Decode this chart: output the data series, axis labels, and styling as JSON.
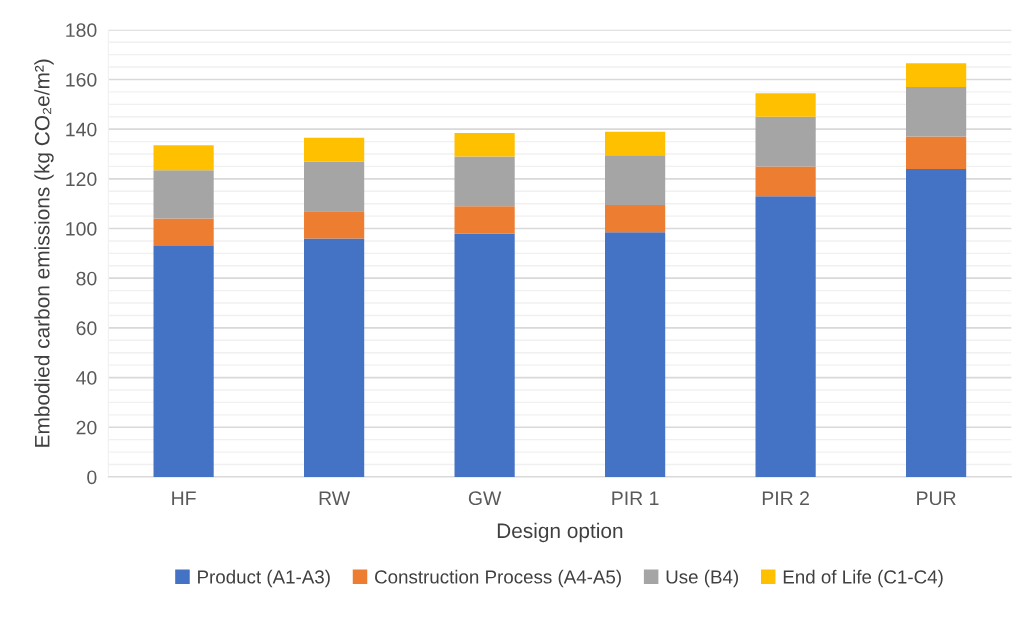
{
  "chart_data": {
    "type": "bar",
    "stacked": true,
    "xlabel": "Design option",
    "ylabel": "Embodied carbon emissions (kg CO₂e/m²)",
    "categories": [
      "HF",
      "RW",
      "GW",
      "PIR 1",
      "PIR 2",
      "PUR"
    ],
    "series": [
      {
        "name": "Product (A1-A3)",
        "color": "#4472c4",
        "values": [
          93,
          96,
          98,
          98.5,
          113,
          124
        ]
      },
      {
        "name": "Construction Process (A4-A5)",
        "color": "#ed7d31",
        "values": [
          11,
          11,
          11,
          11,
          12,
          13
        ]
      },
      {
        "name": "Use (B4)",
        "color": "#a5a5a5",
        "values": [
          19.5,
          20,
          20,
          20,
          20,
          20
        ]
      },
      {
        "name": "End of Life (C1-C4)",
        "color": "#ffc000",
        "values": [
          10,
          9.5,
          9.5,
          9.5,
          9.5,
          9.5
        ]
      }
    ],
    "ylim": [
      0,
      180
    ],
    "yticks": [
      0,
      {
        "value": 5,
        "label": null
      },
      {
        "value": 10,
        "label": null
      },
      {
        "value": 15,
        "label": null
      },
      20,
      {
        "value": 25,
        "label": null
      },
      {
        "value": 30,
        "label": null
      },
      {
        "value": 35,
        "label": null
      },
      40,
      {
        "value": 45,
        "label": null
      },
      {
        "value": 50,
        "label": null
      },
      {
        "value": 55,
        "label": null
      },
      60,
      {
        "value": 65,
        "label": null
      },
      {
        "value": 70,
        "label": null
      },
      {
        "value": 75,
        "label": null
      },
      80,
      {
        "value": 85,
        "label": null
      },
      {
        "value": 90,
        "label": null
      },
      {
        "value": 95,
        "label": null
      },
      100,
      {
        "value": 105,
        "label": null
      },
      {
        "value": 110,
        "label": null
      },
      {
        "value": 115,
        "label": null
      },
      120,
      {
        "value": 125,
        "label": null
      },
      {
        "value": 130,
        "label": null
      },
      {
        "value": 135,
        "label": null
      },
      140,
      {
        "value": 145,
        "label": null
      },
      {
        "value": 150,
        "label": null
      },
      {
        "value": 155,
        "label": null
      },
      160,
      {
        "value": 165,
        "label": null
      },
      {
        "value": 170,
        "label": null
      },
      {
        "value": 175,
        "label": null
      },
      180
    ],
    "grid": "y",
    "legend": "bottom"
  }
}
